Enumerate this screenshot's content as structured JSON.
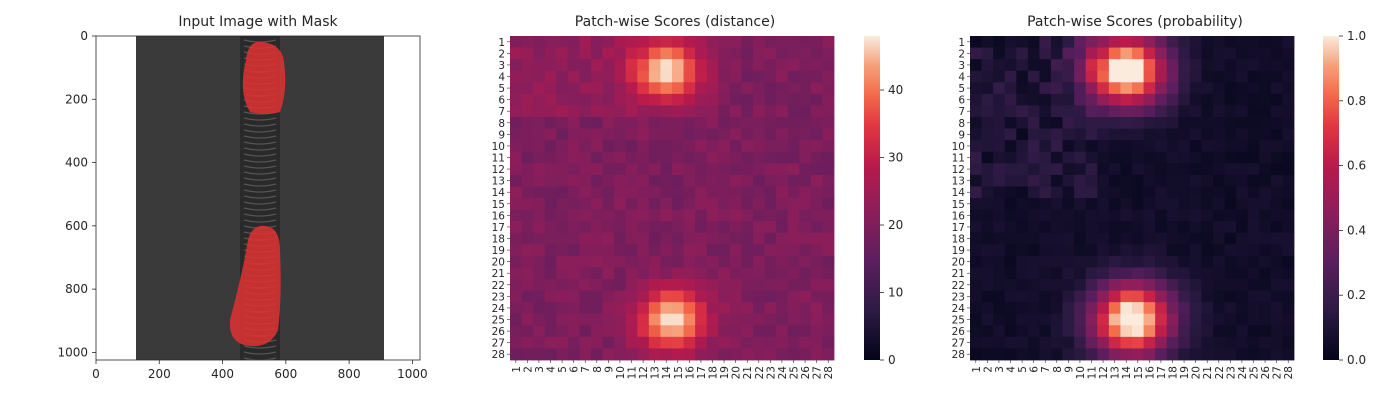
{
  "chart_data": [
    {
      "type": "image",
      "title": "Input Image with Mask",
      "xlim": [
        0,
        1024
      ],
      "ylim": [
        1024,
        0
      ],
      "xticks": [
        "0",
        "200",
        "400",
        "600",
        "800",
        "1000"
      ],
      "yticks": [
        "0",
        "200",
        "400",
        "600",
        "800",
        "1000"
      ],
      "mask_color": "#e03232",
      "background_color": "#3a3a3a"
    },
    {
      "type": "heatmap",
      "title": "Patch-wise Scores (distance)",
      "rows": 28,
      "cols": 28,
      "vmin": 0,
      "vmax": 48,
      "colorbar_ticks": [
        "0",
        "10",
        "20",
        "30",
        "40"
      ],
      "colormap": "rocket",
      "axis_labels": [
        "1",
        "2",
        "3",
        "4",
        "5",
        "6",
        "7",
        "8",
        "9",
        "10",
        "11",
        "12",
        "13",
        "14",
        "15",
        "16",
        "17",
        "18",
        "19",
        "20",
        "21",
        "22",
        "23",
        "24",
        "25",
        "26",
        "27",
        "28"
      ],
      "approx_structure": {
        "base_value": 20,
        "hotspots": [
          {
            "row": 3.5,
            "col": 14,
            "peak": 48
          },
          {
            "row": 25,
            "col": 14.5,
            "peak": 48
          }
        ]
      }
    },
    {
      "type": "heatmap",
      "title": "Patch-wise Scores (probability)",
      "rows": 28,
      "cols": 28,
      "vmin": 0,
      "vmax": 1,
      "colorbar_ticks": [
        "0.0",
        "0.2",
        "0.4",
        "0.6",
        "0.8",
        "1.0"
      ],
      "colormap": "rocket",
      "axis_labels": [
        "1",
        "2",
        "3",
        "4",
        "5",
        "6",
        "7",
        "8",
        "9",
        "10",
        "11",
        "12",
        "13",
        "14",
        "15",
        "16",
        "17",
        "18",
        "19",
        "20",
        "21",
        "22",
        "23",
        "24",
        "25",
        "26",
        "27",
        "28"
      ],
      "approx_structure": {
        "base_value": 0.02,
        "hotspots": [
          {
            "row": 3.5,
            "col": 14,
            "peak": 1.0
          },
          {
            "row": 25,
            "col": 14.5,
            "peak": 1.0
          }
        ]
      }
    }
  ]
}
